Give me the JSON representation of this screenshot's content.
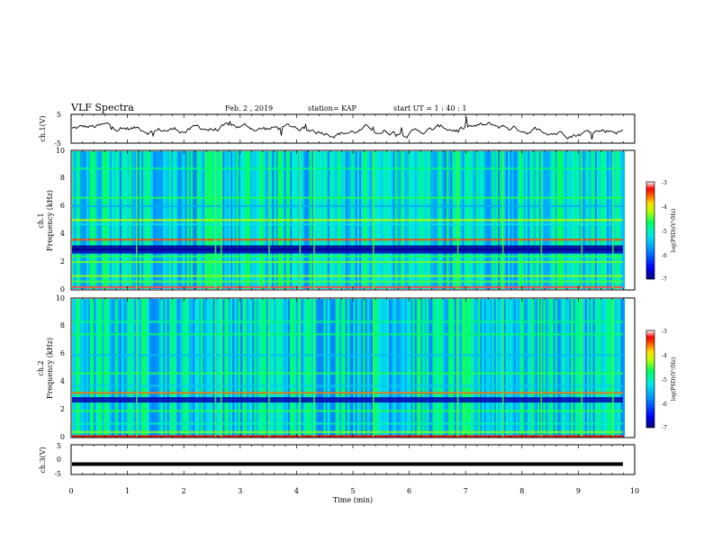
{
  "header": {
    "title": "VLF Spectra",
    "date": "Feb. 2 , 2019",
    "station": "station= KAP",
    "start": "start  UT =   1 : 40 : 1"
  },
  "chart_data": [
    {
      "type": "line",
      "panel": "waveform-ch1",
      "ylabel": "ch.1(V)",
      "ylim": [
        -5,
        5
      ],
      "yticks": [
        "5",
        "-5"
      ],
      "xlim": [
        0,
        10
      ],
      "description_series": "fluctuating voltage trace roughly between -3 and 3 V"
    },
    {
      "type": "heatmap",
      "panel": "spectrogram-ch1",
      "ylabel": [
        "ch.1",
        "Frequency (kHz)"
      ],
      "ylim": [
        0,
        10
      ],
      "yticks": [
        "0",
        "2",
        "4",
        "6",
        "8",
        "10"
      ],
      "xlim": [
        0,
        10
      ],
      "colorbar": {
        "label": "log(PSD)(V²/Hz)",
        "range": [
          -7,
          -3
        ],
        "ticks": [
          "-3",
          "-4",
          "-5",
          "-6",
          "-7"
        ]
      },
      "bands": [
        {
          "f": 0.2,
          "level": -3.2
        },
        {
          "f": 0.6,
          "level": -4.5
        },
        {
          "f": 1.0,
          "level": -4.3
        },
        {
          "f": 2.0,
          "level": -4.4
        },
        {
          "f": 2.4,
          "level": -4.6
        },
        {
          "f": 2.8,
          "level": -6.8
        },
        {
          "f": 3.0,
          "level": -6.9
        },
        {
          "f": 3.6,
          "level": -3.5
        },
        {
          "f": 4.7,
          "level": -5.2
        },
        {
          "f": 5.0,
          "level": -4.2
        },
        {
          "f": 6.0,
          "level": -5.6
        },
        {
          "f": 6.6,
          "level": -4.6
        },
        {
          "f": 8.7,
          "level": -4.8
        }
      ],
      "spikes_min": [
        1.15,
        2.55,
        2.65,
        3.5,
        4.05,
        4.3,
        5.35,
        6.85,
        7.65,
        8.33,
        9.05,
        9.6
      ]
    },
    {
      "type": "heatmap",
      "panel": "spectrogram-ch2",
      "ylabel": [
        "ch.2",
        "Frequency (kHz)"
      ],
      "ylim": [
        0,
        10
      ],
      "yticks": [
        "0",
        "2",
        "4",
        "6",
        "8",
        "10"
      ],
      "xlim": [
        0,
        10
      ],
      "colorbar": {
        "label": "log(PSD)(V²/Hz)",
        "range": [
          -7,
          -3
        ],
        "ticks": [
          "-3",
          "-4",
          "-5",
          "-6",
          "-7"
        ]
      },
      "bands": [
        {
          "f": 0.1,
          "level": -3.3
        },
        {
          "f": 0.4,
          "level": -4.4
        },
        {
          "f": 1.0,
          "level": -5.0
        },
        {
          "f": 1.9,
          "level": -4.6
        },
        {
          "f": 2.7,
          "level": -6.8
        },
        {
          "f": 3.2,
          "level": -3.6
        },
        {
          "f": 3.7,
          "level": -5.4
        },
        {
          "f": 4.6,
          "level": -4.6
        },
        {
          "f": 5.9,
          "level": -5.5
        },
        {
          "f": 7.4,
          "level": -4.7
        },
        {
          "f": 8.3,
          "level": -4.8
        }
      ],
      "spikes_min": [
        1.15,
        2.55,
        2.65,
        3.5,
        4.05,
        4.3,
        5.35,
        6.85,
        7.65,
        8.33,
        9.05,
        9.6
      ]
    },
    {
      "type": "line",
      "panel": "waveform-ch3",
      "ylabel": "ch.3(V)",
      "ylim": [
        -5,
        5
      ],
      "yticks": [
        "5",
        "0",
        "-5"
      ],
      "xlim": [
        0,
        10
      ],
      "value": -1.5
    }
  ],
  "xaxis": {
    "label": "Time  (min)",
    "ticks": [
      "0",
      "1",
      "2",
      "3",
      "4",
      "5",
      "6",
      "7",
      "8",
      "9",
      "10"
    ]
  },
  "colors": {
    "scale": [
      "#00007a",
      "#0000ff",
      "#0080ff",
      "#00e0ff",
      "#00ff80",
      "#80ff00",
      "#ffff00",
      "#ff8000",
      "#ff0000",
      "#ffffff"
    ]
  }
}
